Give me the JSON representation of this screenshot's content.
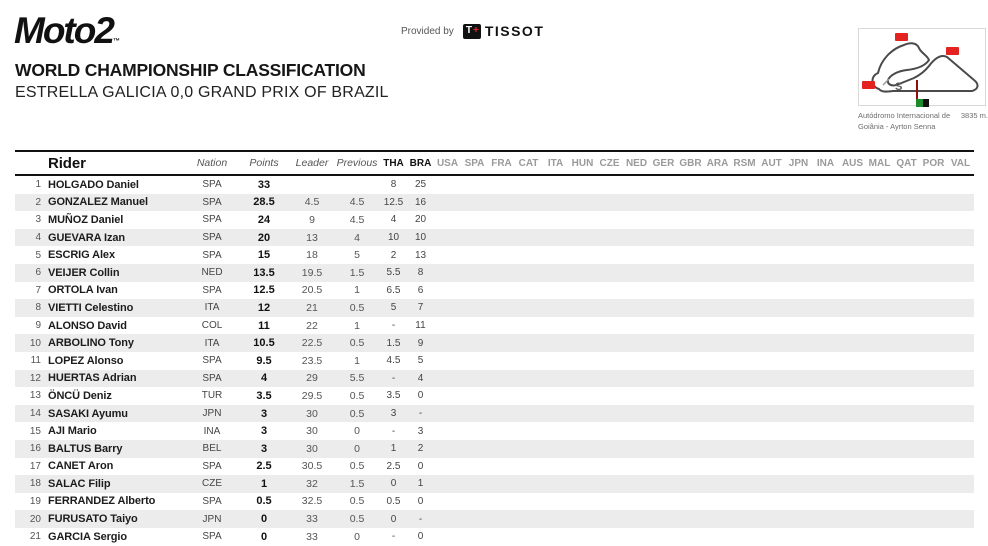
{
  "header": {
    "logo": "Moto2",
    "logo_tm": "™",
    "provided_by": "Provided by",
    "tissot_t": "T",
    "tissot_plus": "+",
    "tissot_word": "TISSOT",
    "title": "WORLD CHAMPIONSHIP CLASSIFICATION",
    "subtitle": "ESTRELLA GALICIA 0,0 GRAND PRIX OF BRAZIL"
  },
  "track": {
    "caption_line1_left": "Autódromo Internacional de",
    "caption_line1_right": "3835 m.",
    "caption_line2": "Goiânia - Ayrton Senna",
    "start_label": "S",
    "accent_color": "#e42320"
  },
  "table": {
    "columns": {
      "rider": "Rider",
      "nation": "Nation",
      "points": "Points",
      "leader": "Leader",
      "previous": "Previous"
    },
    "races": [
      "THA",
      "BRA",
      "USA",
      "SPA",
      "FRA",
      "CAT",
      "ITA",
      "HUN",
      "CZE",
      "NED",
      "GER",
      "GBR",
      "ARA",
      "RSM",
      "AUT",
      "JPN",
      "INA",
      "AUS",
      "MAL",
      "QAT",
      "POR",
      "VAL"
    ],
    "highlighted_races": [
      "THA",
      "BRA"
    ],
    "rows": [
      {
        "pos": "1",
        "rider": "HOLGADO Daniel",
        "nation": "SPA",
        "points": "33",
        "leader": "",
        "previous": "",
        "results": [
          "8",
          "25"
        ]
      },
      {
        "pos": "2",
        "rider": "GONZALEZ Manuel",
        "nation": "SPA",
        "points": "28.5",
        "leader": "4.5",
        "previous": "4.5",
        "results": [
          "12.5",
          "16"
        ]
      },
      {
        "pos": "3",
        "rider": "MUÑOZ Daniel",
        "nation": "SPA",
        "points": "24",
        "leader": "9",
        "previous": "4.5",
        "results": [
          "4",
          "20"
        ]
      },
      {
        "pos": "4",
        "rider": "GUEVARA Izan",
        "nation": "SPA",
        "points": "20",
        "leader": "13",
        "previous": "4",
        "results": [
          "10",
          "10"
        ]
      },
      {
        "pos": "5",
        "rider": "ESCRIG Alex",
        "nation": "SPA",
        "points": "15",
        "leader": "18",
        "previous": "5",
        "results": [
          "2",
          "13"
        ]
      },
      {
        "pos": "6",
        "rider": "VEIJER Collin",
        "nation": "NED",
        "points": "13.5",
        "leader": "19.5",
        "previous": "1.5",
        "results": [
          "5.5",
          "8"
        ]
      },
      {
        "pos": "7",
        "rider": "ORTOLA Ivan",
        "nation": "SPA",
        "points": "12.5",
        "leader": "20.5",
        "previous": "1",
        "results": [
          "6.5",
          "6"
        ]
      },
      {
        "pos": "8",
        "rider": "VIETTI Celestino",
        "nation": "ITA",
        "points": "12",
        "leader": "21",
        "previous": "0.5",
        "results": [
          "5",
          "7"
        ]
      },
      {
        "pos": "9",
        "rider": "ALONSO David",
        "nation": "COL",
        "points": "11",
        "leader": "22",
        "previous": "1",
        "results": [
          "-",
          "11"
        ]
      },
      {
        "pos": "10",
        "rider": "ARBOLINO Tony",
        "nation": "ITA",
        "points": "10.5",
        "leader": "22.5",
        "previous": "0.5",
        "results": [
          "1.5",
          "9"
        ]
      },
      {
        "pos": "11",
        "rider": "LOPEZ Alonso",
        "nation": "SPA",
        "points": "9.5",
        "leader": "23.5",
        "previous": "1",
        "results": [
          "4.5",
          "5"
        ]
      },
      {
        "pos": "12",
        "rider": "HUERTAS Adrian",
        "nation": "SPA",
        "points": "4",
        "leader": "29",
        "previous": "5.5",
        "results": [
          "-",
          "4"
        ]
      },
      {
        "pos": "13",
        "rider": "ÖNCÜ Deniz",
        "nation": "TUR",
        "points": "3.5",
        "leader": "29.5",
        "previous": "0.5",
        "results": [
          "3.5",
          "0"
        ]
      },
      {
        "pos": "14",
        "rider": "SASAKI Ayumu",
        "nation": "JPN",
        "points": "3",
        "leader": "30",
        "previous": "0.5",
        "results": [
          "3",
          "-"
        ]
      },
      {
        "pos": "15",
        "rider": "AJI Mario",
        "nation": "INA",
        "points": "3",
        "leader": "30",
        "previous": "0",
        "results": [
          "-",
          "3"
        ]
      },
      {
        "pos": "16",
        "rider": "BALTUS Barry",
        "nation": "BEL",
        "points": "3",
        "leader": "30",
        "previous": "0",
        "results": [
          "1",
          "2"
        ]
      },
      {
        "pos": "17",
        "rider": "CANET Aron",
        "nation": "SPA",
        "points": "2.5",
        "leader": "30.5",
        "previous": "0.5",
        "results": [
          "2.5",
          "0"
        ]
      },
      {
        "pos": "18",
        "rider": "SALAC Filip",
        "nation": "CZE",
        "points": "1",
        "leader": "32",
        "previous": "1.5",
        "results": [
          "0",
          "1"
        ]
      },
      {
        "pos": "19",
        "rider": "FERRANDEZ Alberto",
        "nation": "SPA",
        "points": "0.5",
        "leader": "32.5",
        "previous": "0.5",
        "results": [
          "0.5",
          "0"
        ]
      },
      {
        "pos": "20",
        "rider": "FURUSATO Taiyo",
        "nation": "JPN",
        "points": "0",
        "leader": "33",
        "previous": "0.5",
        "results": [
          "0",
          "-"
        ]
      },
      {
        "pos": "21",
        "rider": "GARCIA Sergio",
        "nation": "SPA",
        "points": "0",
        "leader": "33",
        "previous": "0",
        "results": [
          "-",
          "0"
        ]
      }
    ]
  }
}
